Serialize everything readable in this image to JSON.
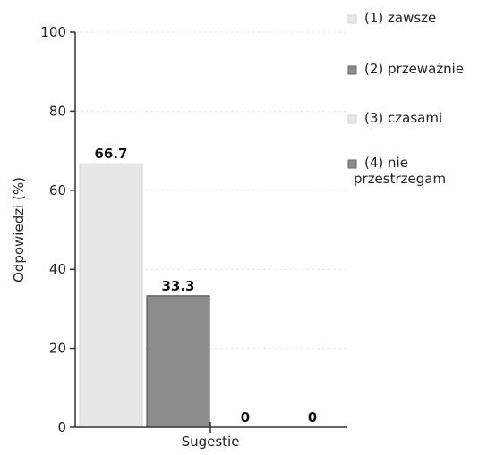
{
  "chart_data": {
    "type": "bar",
    "xlabel": "Sugestie",
    "ylabel": "Odpowiedzi (%)",
    "ylim": [
      0,
      100
    ],
    "yticks": [
      "0",
      "20",
      "40",
      "60",
      "80",
      "100"
    ],
    "grid": true,
    "legend_position": "right",
    "series": [
      {
        "name": "(1) zawsze",
        "value": 66.7,
        "value_label": "66.7",
        "color": "#e7e7e7"
      },
      {
        "name": "(2) przeważnie",
        "value": 33.3,
        "value_label": "33.3",
        "color": "#8c8c8c"
      },
      {
        "name": "(3) czasami",
        "value": 0,
        "value_label": "0",
        "color": "#e7e7e7"
      },
      {
        "name": "(4) nie przestrzegam",
        "value": 0,
        "value_label": "0",
        "color": "#8c8c8c"
      }
    ]
  }
}
